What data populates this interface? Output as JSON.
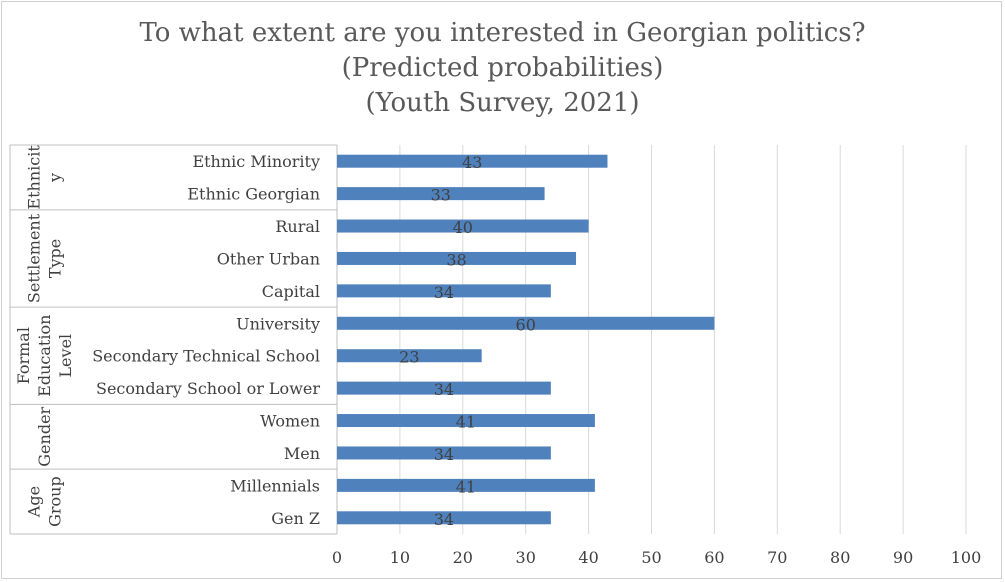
{
  "chart_data": {
    "type": "bar",
    "orientation": "horizontal",
    "title": [
      "To what extent are you interested in Georgian politics?",
      "(Predicted probabilities)",
      "(Youth Survey, 2021)"
    ],
    "xlim": [
      0,
      100
    ],
    "x_ticks": [
      0,
      10,
      20,
      30,
      40,
      50,
      60,
      70,
      80,
      90,
      100
    ],
    "grid": true,
    "bar_color": "#4f81bd",
    "groups": [
      {
        "label": [
          "Ethnicit",
          "y"
        ],
        "categories": [
          "Ethnic Minority",
          "Ethnic Georgian"
        ],
        "values": [
          43,
          33
        ]
      },
      {
        "label": [
          "Settlement",
          "Type"
        ],
        "categories": [
          "Rural",
          "Other Urban",
          "Capital"
        ],
        "values": [
          40,
          38,
          34
        ]
      },
      {
        "label": [
          "Formal",
          "Education",
          "Level"
        ],
        "categories": [
          "University",
          "Secondary Technical School",
          "Secondary School or Lower"
        ],
        "values": [
          60,
          23,
          34
        ]
      },
      {
        "label": [
          "Gender"
        ],
        "categories": [
          "Women",
          "Men"
        ],
        "values": [
          41,
          34
        ]
      },
      {
        "label": [
          "Age",
          "Group"
        ],
        "categories": [
          "Millennials",
          "Gen Z"
        ],
        "values": [
          41,
          34
        ]
      }
    ]
  }
}
